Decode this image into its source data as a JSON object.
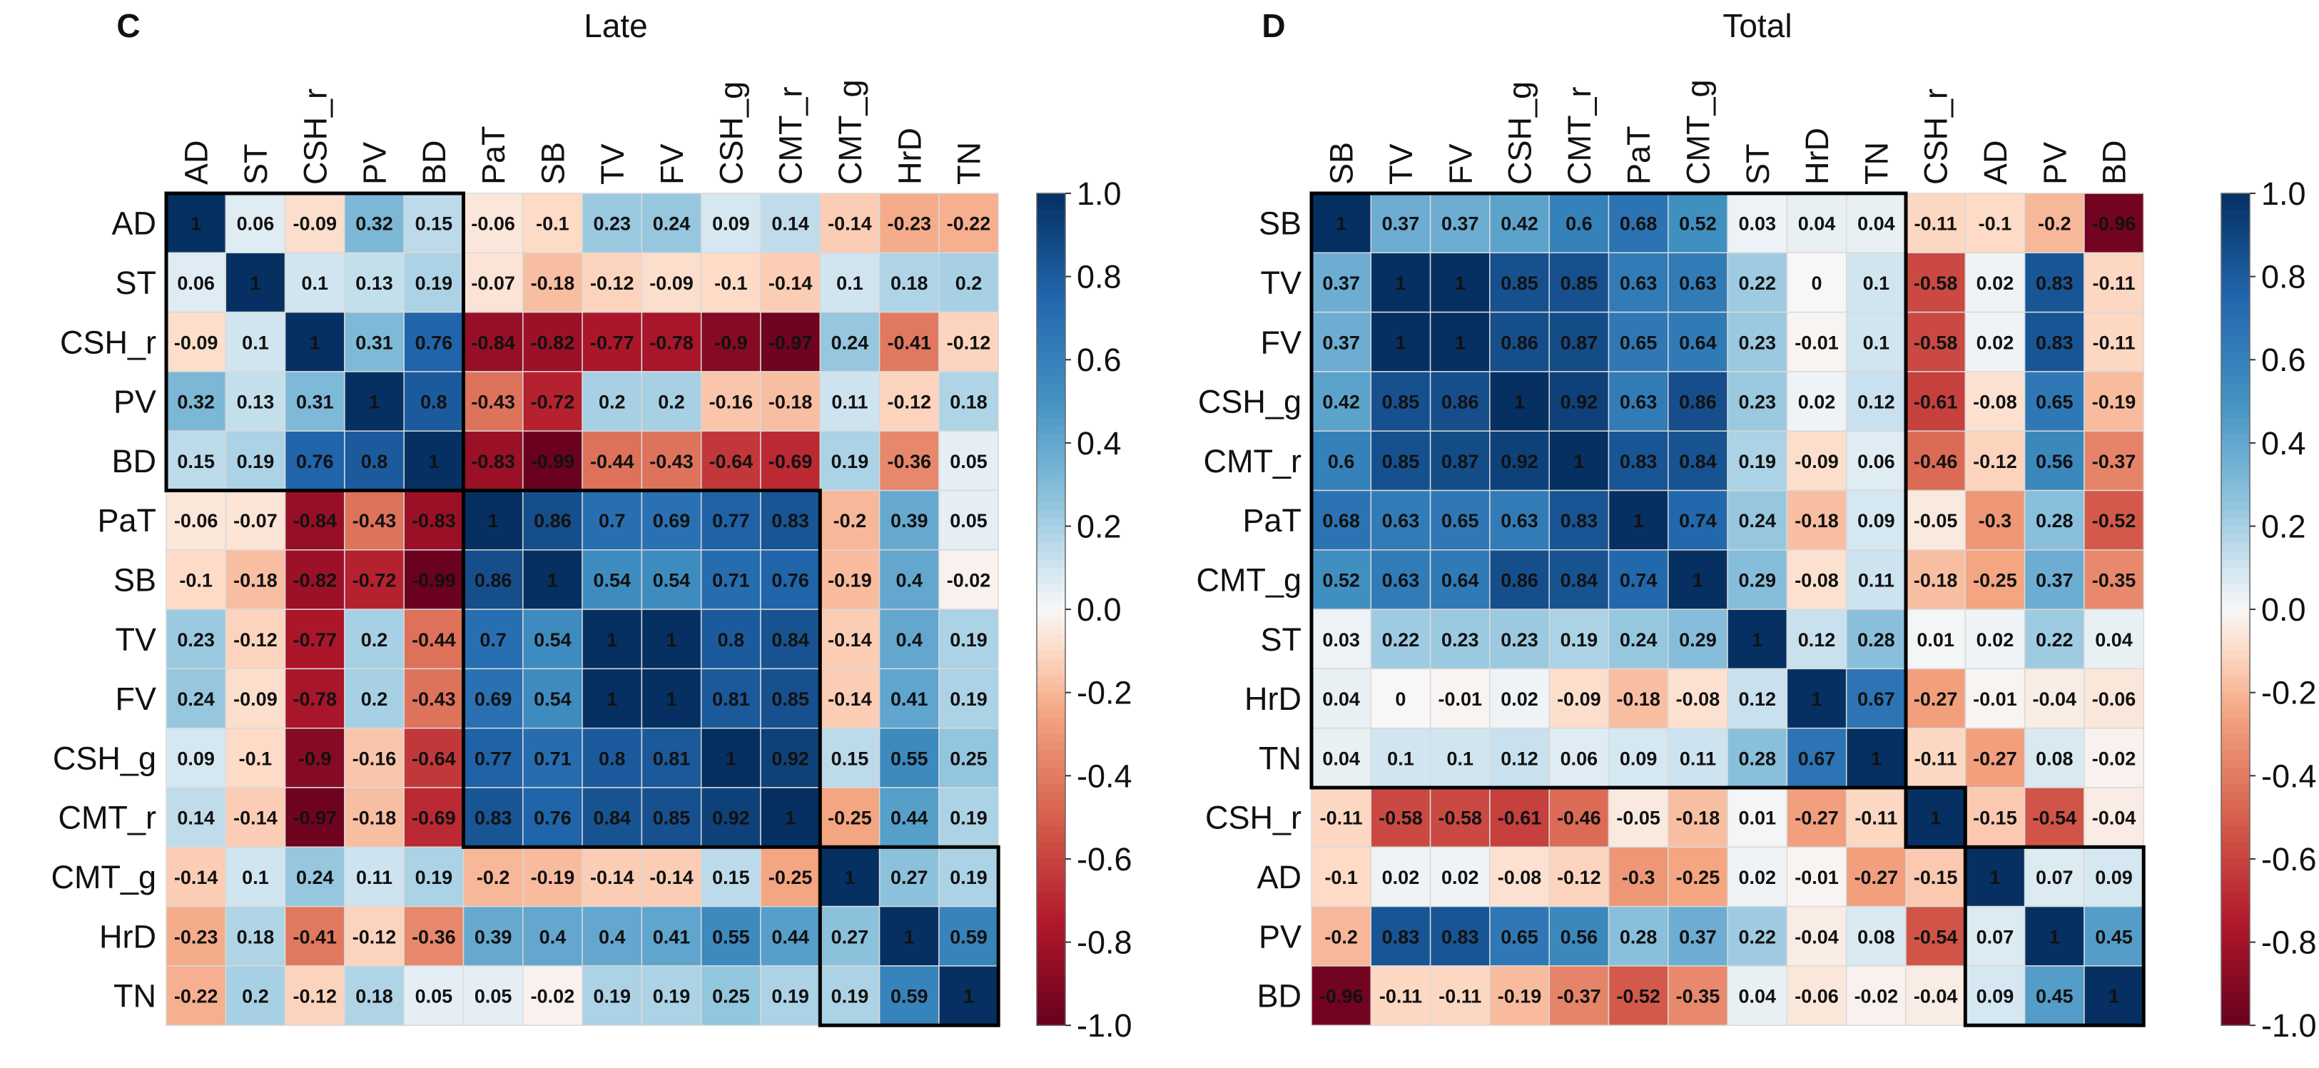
{
  "chart_data": [
    {
      "type": "heatmap",
      "panel_label": "C",
      "title": "Late",
      "labels": [
        "AD",
        "ST",
        "CSH_r",
        "PV",
        "BD",
        "PaT",
        "SB",
        "TV",
        "FV",
        "CSH_g",
        "CMT_r",
        "CMT_g",
        "HrD",
        "TN"
      ],
      "matrix": [
        [
          1,
          0.06,
          -0.09,
          0.32,
          0.15,
          -0.06,
          -0.1,
          0.23,
          0.24,
          0.09,
          0.14,
          -0.14,
          -0.23,
          -0.22
        ],
        [
          0.06,
          1,
          0.1,
          0.13,
          0.19,
          -0.07,
          -0.18,
          -0.12,
          -0.09,
          -0.1,
          -0.14,
          0.1,
          0.18,
          0.2
        ],
        [
          -0.09,
          0.1,
          1,
          0.31,
          0.76,
          -0.84,
          -0.82,
          -0.77,
          -0.78,
          -0.9,
          -0.97,
          0.24,
          -0.41,
          -0.12
        ],
        [
          0.32,
          0.13,
          0.31,
          1,
          0.8,
          -0.43,
          -0.72,
          0.2,
          0.2,
          -0.16,
          -0.18,
          0.11,
          -0.12,
          0.18
        ],
        [
          0.15,
          0.19,
          0.76,
          0.8,
          1,
          -0.83,
          -0.99,
          -0.44,
          -0.43,
          -0.64,
          -0.69,
          0.19,
          -0.36,
          0.05
        ],
        [
          -0.06,
          -0.07,
          -0.84,
          -0.43,
          -0.83,
          1,
          0.86,
          0.7,
          0.69,
          0.77,
          0.83,
          -0.2,
          0.39,
          0.05
        ],
        [
          -0.1,
          -0.18,
          -0.82,
          -0.72,
          -0.99,
          0.86,
          1,
          0.54,
          0.54,
          0.71,
          0.76,
          -0.19,
          0.4,
          -0.02
        ],
        [
          0.23,
          -0.12,
          -0.77,
          0.2,
          -0.44,
          0.7,
          0.54,
          1,
          1,
          0.8,
          0.84,
          -0.14,
          0.4,
          0.19
        ],
        [
          0.24,
          -0.09,
          -0.78,
          0.2,
          -0.43,
          0.69,
          0.54,
          1,
          1,
          0.81,
          0.85,
          -0.14,
          0.41,
          0.19
        ],
        [
          0.09,
          -0.1,
          -0.9,
          -0.16,
          -0.64,
          0.77,
          0.71,
          0.8,
          0.81,
          1,
          0.92,
          0.15,
          0.55,
          0.25
        ],
        [
          0.14,
          -0.14,
          -0.97,
          -0.18,
          -0.69,
          0.83,
          0.76,
          0.84,
          0.85,
          0.92,
          1,
          -0.25,
          0.44,
          0.19
        ],
        [
          -0.14,
          0.1,
          0.24,
          0.11,
          0.19,
          -0.2,
          -0.19,
          -0.14,
          -0.14,
          0.15,
          -0.25,
          1,
          0.27,
          0.19
        ],
        [
          -0.23,
          0.18,
          -0.41,
          -0.12,
          -0.36,
          0.39,
          0.4,
          0.4,
          0.41,
          0.55,
          0.44,
          0.27,
          1,
          0.59
        ],
        [
          -0.22,
          0.2,
          -0.12,
          0.18,
          0.05,
          0.05,
          -0.02,
          0.19,
          0.19,
          0.25,
          0.19,
          0.19,
          0.59,
          1
        ]
      ],
      "clusters": [
        [
          0,
          4
        ],
        [
          5,
          10
        ],
        [
          11,
          13
        ]
      ],
      "colorbar": {
        "min": -1.0,
        "max": 1.0,
        "ticks": [
          "1.0",
          "0.8",
          "0.6",
          "0.4",
          "0.2",
          "0.0",
          "-0.2",
          "-0.4",
          "-0.6",
          "-0.8",
          "-1.0"
        ]
      }
    },
    {
      "type": "heatmap",
      "panel_label": "D",
      "title": "Total",
      "labels": [
        "SB",
        "TV",
        "FV",
        "CSH_g",
        "CMT_r",
        "PaT",
        "CMT_g",
        "ST",
        "HrD",
        "TN",
        "CSH_r",
        "AD",
        "PV",
        "BD"
      ],
      "matrix": [
        [
          1,
          0.37,
          0.37,
          0.42,
          0.6,
          0.68,
          0.52,
          0.03,
          0.04,
          0.04,
          -0.11,
          -0.1,
          -0.2,
          -0.96
        ],
        [
          0.37,
          1,
          1,
          0.85,
          0.85,
          0.63,
          0.63,
          0.22,
          0,
          0.1,
          -0.58,
          0.02,
          0.83,
          -0.11
        ],
        [
          0.37,
          1,
          1,
          0.86,
          0.87,
          0.65,
          0.64,
          0.23,
          -0.01,
          0.1,
          -0.58,
          0.02,
          0.83,
          -0.11
        ],
        [
          0.42,
          0.85,
          0.86,
          1,
          0.92,
          0.63,
          0.86,
          0.23,
          0.02,
          0.12,
          -0.61,
          -0.08,
          0.65,
          -0.19
        ],
        [
          0.6,
          0.85,
          0.87,
          0.92,
          1,
          0.83,
          0.84,
          0.19,
          -0.09,
          0.06,
          -0.46,
          -0.12,
          0.56,
          -0.37
        ],
        [
          0.68,
          0.63,
          0.65,
          0.63,
          0.83,
          1,
          0.74,
          0.24,
          -0.18,
          0.09,
          -0.05,
          -0.3,
          0.28,
          -0.52
        ],
        [
          0.52,
          0.63,
          0.64,
          0.86,
          0.84,
          0.74,
          1,
          0.29,
          -0.08,
          0.11,
          -0.18,
          -0.25,
          0.37,
          -0.35
        ],
        [
          0.03,
          0.22,
          0.23,
          0.23,
          0.19,
          0.24,
          0.29,
          1,
          0.12,
          0.28,
          0.01,
          0.02,
          0.22,
          0.04
        ],
        [
          0.04,
          0,
          -0.01,
          0.02,
          -0.09,
          -0.18,
          -0.08,
          0.12,
          1,
          0.67,
          -0.27,
          -0.01,
          -0.04,
          -0.06
        ],
        [
          0.04,
          0.1,
          0.1,
          0.12,
          0.06,
          0.09,
          0.11,
          0.28,
          0.67,
          1,
          -0.11,
          -0.27,
          0.08,
          -0.02
        ],
        [
          -0.11,
          -0.58,
          -0.58,
          -0.61,
          -0.46,
          -0.05,
          -0.18,
          0.01,
          -0.27,
          -0.11,
          1,
          -0.15,
          -0.54,
          -0.04
        ],
        [
          -0.1,
          0.02,
          0.02,
          -0.08,
          -0.12,
          -0.3,
          -0.25,
          0.02,
          -0.01,
          -0.27,
          -0.15,
          1,
          0.07,
          0.09
        ],
        [
          -0.2,
          0.83,
          0.83,
          0.65,
          0.56,
          0.28,
          0.37,
          0.22,
          -0.04,
          0.08,
          -0.54,
          0.07,
          1,
          0.45
        ],
        [
          -0.96,
          -0.11,
          -0.11,
          -0.19,
          -0.37,
          -0.52,
          -0.35,
          0.04,
          -0.06,
          -0.02,
          -0.04,
          0.09,
          0.45,
          1
        ]
      ],
      "clusters": [
        [
          0,
          9
        ],
        [
          10,
          10
        ],
        [
          11,
          13
        ]
      ],
      "colorbar": {
        "min": -1.0,
        "max": 1.0,
        "ticks": [
          "1.0",
          "0.8",
          "0.6",
          "0.4",
          "0.2",
          "0.0",
          "-0.2",
          "-0.4",
          "-0.6",
          "-0.8",
          "-1.0"
        ]
      }
    }
  ]
}
